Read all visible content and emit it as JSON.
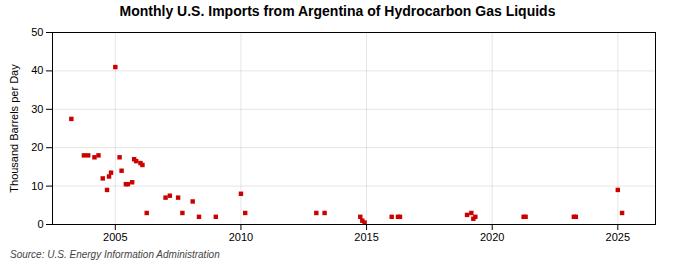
{
  "chart_data": {
    "type": "scatter",
    "title": "Monthly U.S. Imports from Argentina of Hydrocarbon Gas Liquids",
    "ylabel": "Thousand Barrels per Day",
    "source": "Source: U.S. Energy Information Administration",
    "color": "#cc0000",
    "marker": "square",
    "grid": true,
    "xlim": [
      2002.5,
      2026.5
    ],
    "xticks": [
      2005,
      2010,
      2015,
      2020,
      2025
    ],
    "ylim": [
      0,
      50
    ],
    "yticks": [
      0,
      10,
      20,
      30,
      40,
      50
    ],
    "x": [
      2003.25,
      2003.75,
      2003.92,
      2004.17,
      2004.33,
      2004.5,
      2004.67,
      2004.75,
      2004.83,
      2005.0,
      2005.17,
      2005.25,
      2005.42,
      2005.5,
      2005.67,
      2005.75,
      2005.83,
      2006.0,
      2006.08,
      2006.25,
      2007.0,
      2007.17,
      2007.5,
      2007.67,
      2008.08,
      2008.33,
      2009.0,
      2010.0,
      2010.17,
      2013.0,
      2013.33,
      2014.75,
      2014.83,
      2014.92,
      2016.0,
      2016.25,
      2016.33,
      2019.0,
      2019.17,
      2019.25,
      2019.33,
      2021.25,
      2021.33,
      2023.25,
      2023.33,
      2025.0,
      2025.17
    ],
    "values": [
      27.5,
      18.0,
      18.0,
      17.5,
      18.0,
      12.0,
      9.0,
      12.5,
      13.5,
      41.0,
      17.5,
      14.0,
      10.5,
      10.5,
      11.0,
      17.0,
      16.5,
      16.0,
      15.5,
      3.0,
      7.0,
      7.5,
      7.0,
      3.0,
      6.0,
      2.0,
      2.0,
      8.0,
      3.0,
      3.0,
      3.0,
      2.0,
      1.0,
      0.5,
      2.0,
      2.0,
      2.0,
      2.5,
      3.0,
      1.5,
      2.0,
      2.0,
      2.0,
      2.0,
      2.0,
      9.0,
      3.0
    ]
  }
}
